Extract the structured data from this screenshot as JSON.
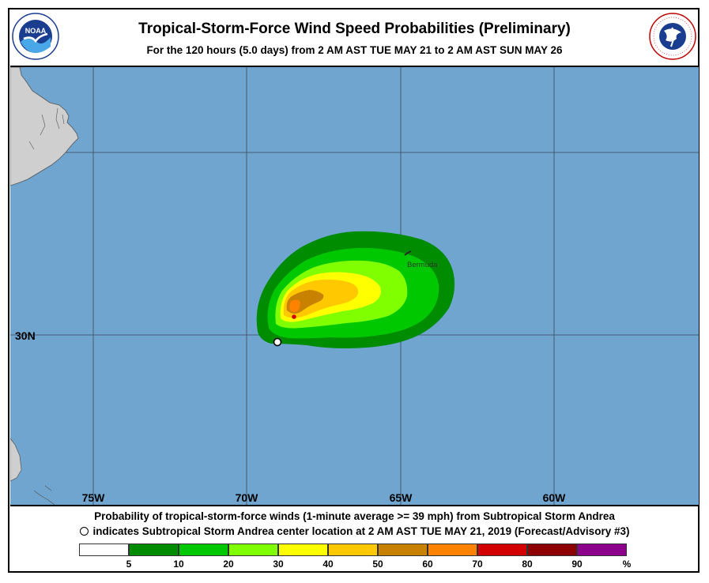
{
  "title": "Tropical-Storm-Force Wind Speed Probabilities (Preliminary)",
  "subtitle": "For the 120 hours (5.0 days) from 2 AM AST TUE MAY 21 to 2 AM AST SUN MAY 26",
  "logos": {
    "left": {
      "text": "NOAA",
      "color": "#1a3d8f"
    },
    "right": {
      "text": "NATIONAL WEATHER SERVICE",
      "color": "#d10000"
    }
  },
  "map": {
    "ocean_color": "#6fa5cf",
    "land_color": "#cfcfcf",
    "latitude_label": "30N",
    "longitude_labels": [
      "75W",
      "70W",
      "65W",
      "60W"
    ],
    "place_label": "Bermuda",
    "storm_center_marker": "open circle"
  },
  "caption": {
    "line1": "Probability of tropical-storm-force winds (1-minute average >= 39 mph) from Subtropical Storm Andrea",
    "line2": "indicates Subtropical Storm Andrea center location at 2 AM AST TUE MAY 21, 2019 (Forecast/Advisory #3)"
  },
  "legend": {
    "colors": [
      "#ffffff",
      "#008c00",
      "#00c800",
      "#80ff00",
      "#ffff00",
      "#ffc800",
      "#c88200",
      "#ff8200",
      "#d20000",
      "#8c0000",
      "#8c008c"
    ],
    "labels": [
      "5",
      "10",
      "20",
      "30",
      "40",
      "50",
      "60",
      "70",
      "80",
      "90",
      "%"
    ]
  }
}
